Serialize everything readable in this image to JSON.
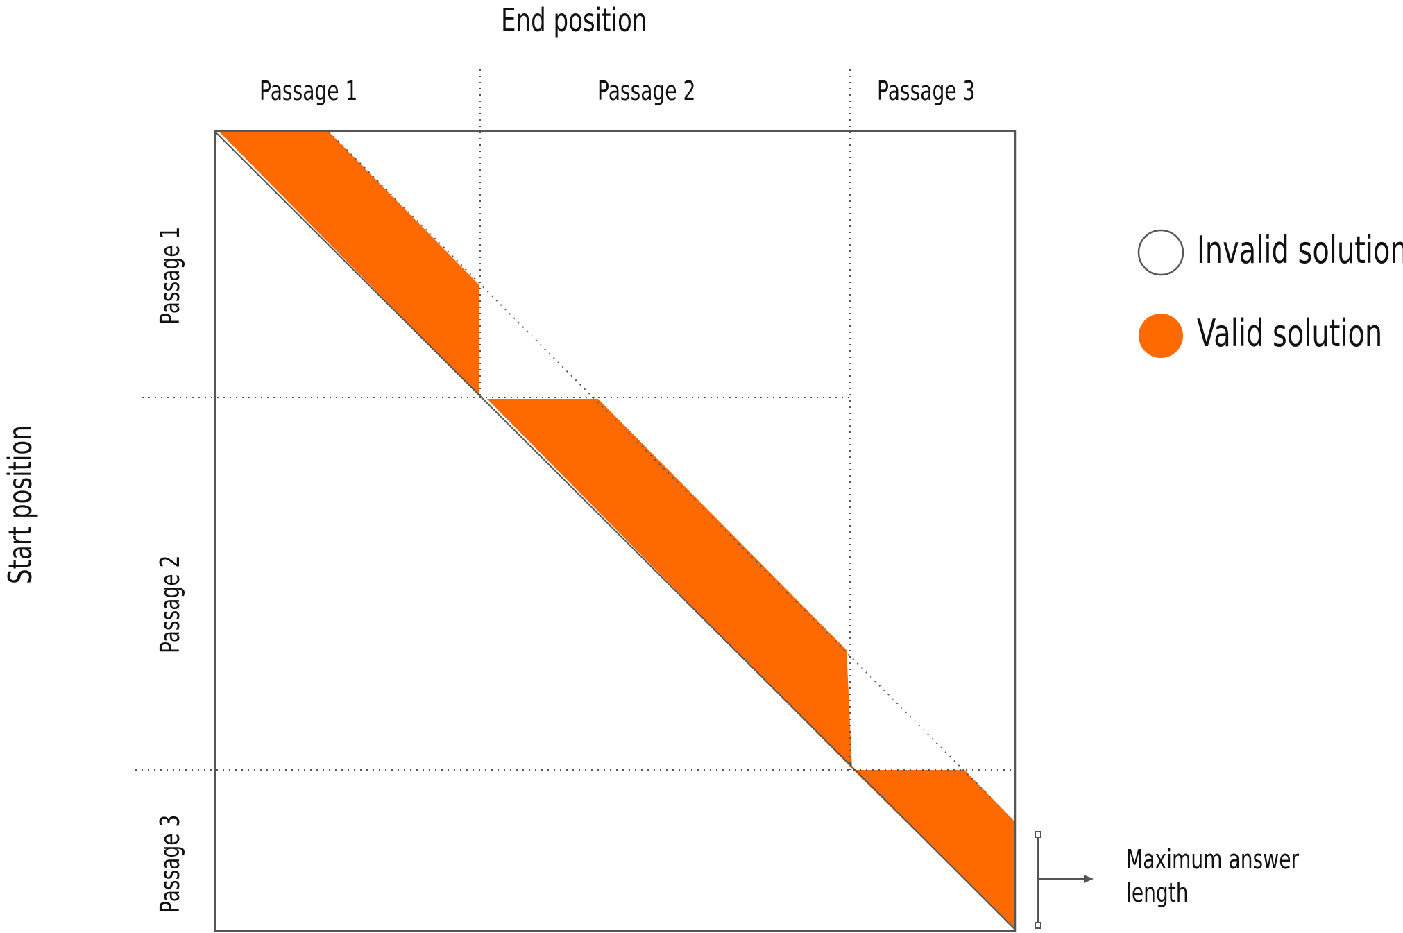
{
  "axis": {
    "x_title": "End position",
    "y_title": "Start position"
  },
  "columns": [
    "Passage 1",
    "Passage 2",
    "Passage 3"
  ],
  "rows": [
    "Passage 1",
    "Passage 2",
    "Passage 3"
  ],
  "legend": {
    "invalid": "Invalid solution",
    "valid": "Valid solution"
  },
  "annotation": {
    "line1": "Maximum answer",
    "line2": "length"
  },
  "colors": {
    "valid": "#ff6a00",
    "frame": "#555555",
    "text": "#111111"
  }
}
